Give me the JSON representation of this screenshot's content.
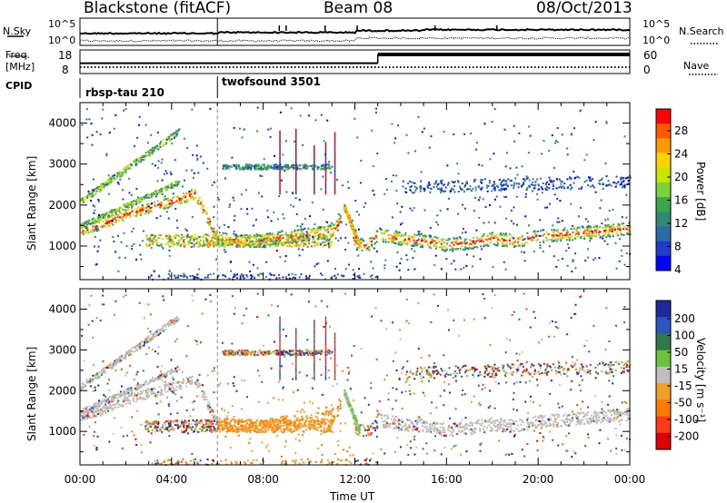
{
  "header": {
    "title": "Blackstone (fitACF)",
    "beam": "Beam 08",
    "date": "08/Oct/2013"
  },
  "noise_panel": {
    "left_label": "N.Sky",
    "right_label": "N.Search",
    "left_ticks": [
      "10^5",
      "10^0"
    ],
    "right_ticks": [
      "10^5",
      "10^0"
    ]
  },
  "freq_panel": {
    "left_label_1": "Freq.",
    "left_label_2": "[MHz]",
    "right_label": "Nave",
    "left_ticks": [
      "18",
      "8"
    ],
    "right_ticks": [
      "60",
      "0"
    ],
    "freq_mhz": 10.5,
    "nave": {
      "before_1300": 26,
      "after_1300": 50
    }
  },
  "cpid": {
    "label": "CPID",
    "modes": [
      {
        "name": "rbsp-tau 210",
        "start_hour": 0
      },
      {
        "name": "twofsound 3501",
        "start_hour": 6
      }
    ]
  },
  "power_panel": {
    "ylabel": "Slant Range [km]",
    "yticks": [
      "4000",
      "3000",
      "2000",
      "1000"
    ],
    "colorbar_label": "Power [dB]",
    "colorbar_ticks": [
      "28",
      "24",
      "20",
      "16",
      "12",
      "8",
      "4"
    ],
    "colors": [
      "#ff0000",
      "#ff5a00",
      "#ff9a00",
      "#ffd200",
      "#c8e600",
      "#7ad23c",
      "#3aa84a",
      "#2f8a78",
      "#2c6aa8",
      "#1e3cc8",
      "#0000ff"
    ]
  },
  "velocity_panel": {
    "ylabel": "Slant Range [km]",
    "yticks": [
      "4000",
      "3000",
      "2000",
      "1000"
    ],
    "colorbar_label": "Velocity [m s⁻¹]",
    "colorbar_ticks": [
      "200",
      "100",
      "50",
      "15",
      "-15",
      "-50",
      "-100",
      "-200"
    ],
    "colors": [
      "#1e2a9a",
      "#2b55c0",
      "#2f7a48",
      "#6cc23a",
      "#bebebe",
      "#f2a02a",
      "#ff7a00",
      "#ff3a1a",
      "#e00000"
    ],
    "ground_scatter_color": "#bebebe"
  },
  "x_axis": {
    "ticks": [
      "00:00",
      "04:00",
      "08:00",
      "12:00",
      "16:00",
      "20:00",
      "00:00"
    ],
    "label": "Time UT"
  },
  "chart_data": {
    "type": "heatmap",
    "xlabel": "Time UT",
    "ylabel": "Slant Range [km]",
    "xlim_hours": [
      0,
      24
    ],
    "ylim_km": [
      180,
      4500
    ],
    "mode_change_hour": 6,
    "main_band_range_km": {
      "hours": [
        0,
        1,
        2,
        3,
        4,
        5,
        6,
        7,
        8,
        9,
        10,
        11,
        11.5,
        12,
        12.5,
        13,
        14,
        15,
        16,
        17,
        18,
        19,
        20,
        21,
        22,
        23,
        24
      ],
      "center_km": [
        1400,
        1550,
        1800,
        1950,
        2100,
        2300,
        1200,
        1150,
        1150,
        1250,
        1300,
        1400,
        1700,
        1100,
        1000,
        1300,
        1200,
        1150,
        1050,
        1100,
        1200,
        1150,
        1250,
        1300,
        1350,
        1400,
        1450
      ]
    },
    "power_db": {
      "peak": 28,
      "band_typical": 20,
      "scatter_typical": 8
    },
    "velocity_ms": {
      "ground_scatter": 0,
      "dayside_morning": -60,
      "evening_mixed": 30
    }
  }
}
